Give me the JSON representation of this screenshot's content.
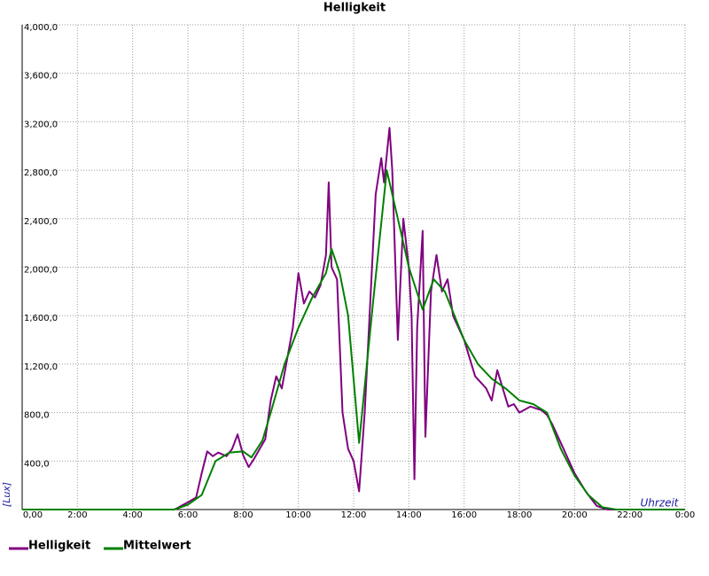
{
  "chart_data": {
    "type": "line",
    "title": "Helligkeit",
    "x_label": "Uhrzeit",
    "y_label": "[Lux]",
    "xlim": [
      0,
      24
    ],
    "xticks": [
      {
        "value": 0,
        "label": "0,00"
      },
      {
        "value": 2,
        "label": "2:00"
      },
      {
        "value": 4,
        "label": "4:00"
      },
      {
        "value": 6,
        "label": "6:00"
      },
      {
        "value": 8,
        "label": "8:00"
      },
      {
        "value": 10,
        "label": "10:00"
      },
      {
        "value": 12,
        "label": "12:00"
      },
      {
        "value": 14,
        "label": "14:00"
      },
      {
        "value": 16,
        "label": "16:00"
      },
      {
        "value": 18,
        "label": "18:00"
      },
      {
        "value": 20,
        "label": "20:00"
      },
      {
        "value": 22,
        "label": "22:00"
      },
      {
        "value": 24,
        "label": "0:00"
      }
    ],
    "ylim": [
      0,
      4000
    ],
    "yticks": [
      {
        "value": 400,
        "label": "400,0"
      },
      {
        "value": 800,
        "label": "800,0"
      },
      {
        "value": 1200,
        "label": "1,200,0"
      },
      {
        "value": 1600,
        "label": "1,600,0"
      },
      {
        "value": 2000,
        "label": "2,000,0"
      },
      {
        "value": 2400,
        "label": "2,400,0"
      },
      {
        "value": 2800,
        "label": "2,800,0"
      },
      {
        "value": 3200,
        "label": "3,200,0"
      },
      {
        "value": 3600,
        "label": "3,600,0"
      },
      {
        "value": 4000,
        "label": "4,000,0"
      }
    ],
    "grid": true,
    "series": [
      {
        "name": "Helligkeit",
        "color": "#800080",
        "x": [
          0,
          5.5,
          5.6,
          6.0,
          6.3,
          6.5,
          6.7,
          6.9,
          7.1,
          7.4,
          7.6,
          7.8,
          8.0,
          8.2,
          8.4,
          8.6,
          8.8,
          9.0,
          9.2,
          9.4,
          9.6,
          9.8,
          10.0,
          10.2,
          10.4,
          10.6,
          10.8,
          11.0,
          11.1,
          11.2,
          11.4,
          11.6,
          11.8,
          12.0,
          12.2,
          12.4,
          12.6,
          12.8,
          13.0,
          13.1,
          13.3,
          13.4,
          13.6,
          13.8,
          14.0,
          14.1,
          14.2,
          14.3,
          14.5,
          14.6,
          14.8,
          15.0,
          15.2,
          15.4,
          15.6,
          15.8,
          16.0,
          16.4,
          16.8,
          17.0,
          17.2,
          17.4,
          17.6,
          17.8,
          18.0,
          18.4,
          18.8,
          19.0,
          19.2,
          19.6,
          20.0,
          20.4,
          20.8,
          21.2,
          24
        ],
        "values": [
          0,
          0,
          10,
          60,
          100,
          300,
          480,
          440,
          470,
          440,
          500,
          620,
          450,
          350,
          420,
          500,
          580,
          900,
          1100,
          1000,
          1250,
          1500,
          1950,
          1700,
          1800,
          1750,
          1850,
          2100,
          2700,
          2000,
          1900,
          800,
          500,
          400,
          150,
          800,
          1700,
          2600,
          2900,
          2700,
          3150,
          2800,
          1400,
          2400,
          2000,
          1600,
          250,
          1500,
          2300,
          600,
          1800,
          2100,
          1800,
          1900,
          1600,
          1500,
          1400,
          1100,
          1000,
          900,
          1150,
          1000,
          850,
          870,
          800,
          850,
          820,
          780,
          700,
          500,
          300,
          150,
          30,
          0,
          0
        ]
      },
      {
        "name": "Mittelwert",
        "color": "#008000",
        "x": [
          0,
          5.5,
          6.0,
          6.5,
          7.0,
          7.5,
          8.0,
          8.3,
          8.7,
          9.0,
          9.5,
          10.0,
          10.5,
          11.0,
          11.2,
          11.5,
          11.8,
          12.2,
          12.7,
          13.2,
          13.6,
          14.0,
          14.5,
          14.9,
          15.3,
          16.0,
          16.5,
          17.0,
          17.5,
          18.0,
          18.5,
          19.0,
          19.5,
          20.0,
          20.5,
          21.0,
          21.5,
          24
        ],
        "values": [
          0,
          0,
          40,
          120,
          400,
          470,
          480,
          430,
          570,
          800,
          1200,
          1500,
          1750,
          1950,
          2150,
          1950,
          1600,
          550,
          1700,
          2800,
          2400,
          2000,
          1650,
          1900,
          1800,
          1400,
          1200,
          1080,
          1000,
          900,
          870,
          800,
          500,
          280,
          120,
          20,
          0,
          0
        ]
      }
    ]
  }
}
